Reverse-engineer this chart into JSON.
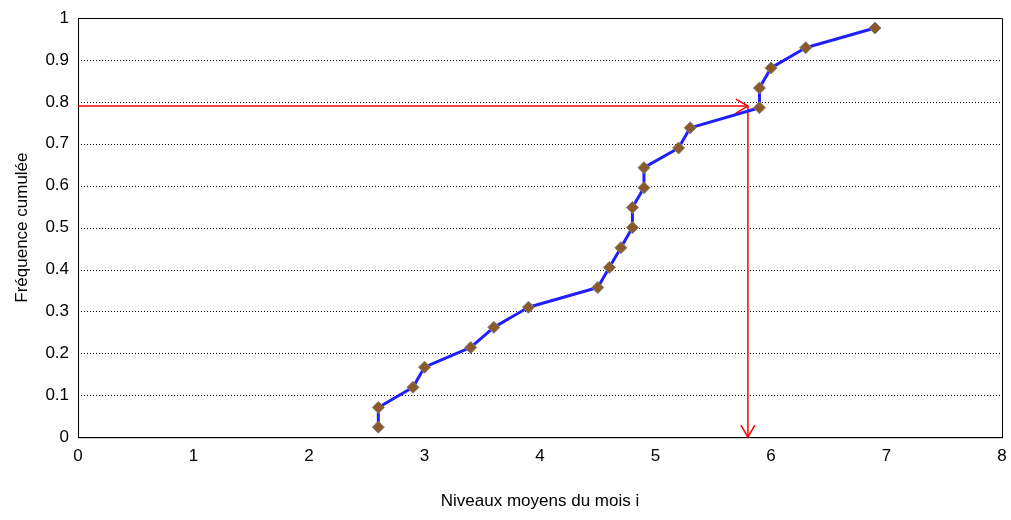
{
  "chart_data": {
    "type": "line",
    "xlabel": "Niveaux moyens du mois i",
    "ylabel": "Fréquence cumulée",
    "series": [
      {
        "color": "#1f1fff",
        "x": [
          2.6,
          2.6,
          2.9,
          3.0,
          3.4,
          3.6,
          3.9,
          4.5,
          4.6,
          4.7,
          4.8,
          4.8,
          4.9,
          4.9,
          5.2,
          5.3,
          5.9,
          5.9,
          6.0,
          6.3,
          6.9
        ],
        "values": [
          0.024,
          0.071,
          0.119,
          0.167,
          0.214,
          0.262,
          0.31,
          0.357,
          0.405,
          0.452,
          0.5,
          0.548,
          0.595,
          0.643,
          0.69,
          0.738,
          0.786,
          0.833,
          0.881,
          0.929,
          0.976
        ]
      }
    ],
    "marker": "diamond",
    "line_style": "solid",
    "xlim": [
      0,
      8
    ],
    "xticks": [
      0,
      1,
      2,
      3,
      4,
      5,
      6,
      7,
      8
    ],
    "ylim": [
      0,
      1
    ],
    "yticks": [
      0,
      0.1,
      0.2,
      0.3,
      0.4,
      0.5,
      0.6,
      0.7,
      0.8,
      0.9,
      1
    ],
    "grid": "y",
    "legend": false,
    "ref_lines": [
      {
        "axis": "y",
        "value": 0.79,
        "color": "#ff0000"
      },
      {
        "axis": "x",
        "value": 5.8,
        "color": "#ff0000"
      }
    ]
  }
}
